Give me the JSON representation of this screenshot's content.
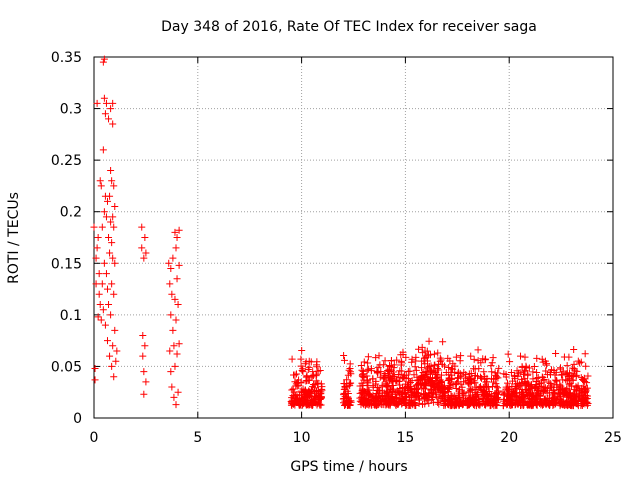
{
  "chart_data": {
    "type": "scatter",
    "title": "Day 348 of 2016, Rate Of TEC Index for receiver saga",
    "xlabel": "GPS time / hours",
    "ylabel": "ROTI / TECUs",
    "xlim": [
      0,
      25
    ],
    "ylim": [
      0,
      0.35
    ],
    "xticks": [
      0,
      5,
      10,
      15,
      20,
      25
    ],
    "xtick_labels": [
      "0",
      "5",
      "10",
      "15",
      "20",
      "25"
    ],
    "yticks": [
      0,
      0.05,
      0.1,
      0.15,
      0.2,
      0.25,
      0.3,
      0.35
    ],
    "ytick_labels": [
      "0",
      "0.05",
      "0.1",
      "0.15",
      "0.2",
      "0.25",
      "0.3",
      "0.35"
    ],
    "grid": true,
    "marker": "+",
    "color": "#ff0000",
    "series": [
      {
        "name": "ROTI",
        "points": [
          [
            0.0,
            0.185
          ],
          [
            0.05,
            0.048
          ],
          [
            0.05,
            0.037
          ],
          [
            0.1,
            0.13
          ],
          [
            0.1,
            0.155
          ],
          [
            0.15,
            0.305
          ],
          [
            0.15,
            0.165
          ],
          [
            0.2,
            0.098
          ],
          [
            0.2,
            0.175
          ],
          [
            0.25,
            0.14
          ],
          [
            0.25,
            0.12
          ],
          [
            0.3,
            0.23
          ],
          [
            0.3,
            0.11
          ],
          [
            0.35,
            0.225
          ],
          [
            0.35,
            0.095
          ],
          [
            0.4,
            0.185
          ],
          [
            0.4,
            0.13
          ],
          [
            0.45,
            0.345
          ],
          [
            0.45,
            0.26
          ],
          [
            0.45,
            0.105
          ],
          [
            0.5,
            0.348
          ],
          [
            0.5,
            0.31
          ],
          [
            0.5,
            0.2
          ],
          [
            0.5,
            0.15
          ],
          [
            0.55,
            0.295
          ],
          [
            0.55,
            0.215
          ],
          [
            0.55,
            0.09
          ],
          [
            0.6,
            0.305
          ],
          [
            0.6,
            0.195
          ],
          [
            0.6,
            0.14
          ],
          [
            0.65,
            0.21
          ],
          [
            0.65,
            0.125
          ],
          [
            0.65,
            0.075
          ],
          [
            0.7,
            0.29
          ],
          [
            0.7,
            0.175
          ],
          [
            0.7,
            0.11
          ],
          [
            0.75,
            0.215
          ],
          [
            0.75,
            0.16
          ],
          [
            0.75,
            0.06
          ],
          [
            0.8,
            0.3
          ],
          [
            0.8,
            0.24
          ],
          [
            0.8,
            0.19
          ],
          [
            0.8,
            0.1
          ],
          [
            0.85,
            0.23
          ],
          [
            0.85,
            0.17
          ],
          [
            0.85,
            0.13
          ],
          [
            0.85,
            0.05
          ],
          [
            0.9,
            0.305
          ],
          [
            0.9,
            0.285
          ],
          [
            0.9,
            0.195
          ],
          [
            0.9,
            0.155
          ],
          [
            0.9,
            0.07
          ],
          [
            0.95,
            0.225
          ],
          [
            0.95,
            0.185
          ],
          [
            0.95,
            0.12
          ],
          [
            0.95,
            0.04
          ],
          [
            1.0,
            0.205
          ],
          [
            1.0,
            0.15
          ],
          [
            1.0,
            0.085
          ],
          [
            1.05,
            0.055
          ],
          [
            1.1,
            0.065
          ],
          [
            2.3,
            0.185
          ],
          [
            2.3,
            0.165
          ],
          [
            2.35,
            0.08
          ],
          [
            2.35,
            0.06
          ],
          [
            2.4,
            0.155
          ],
          [
            2.4,
            0.045
          ],
          [
            2.4,
            0.023
          ],
          [
            2.45,
            0.175
          ],
          [
            2.45,
            0.07
          ],
          [
            2.5,
            0.16
          ],
          [
            2.5,
            0.035
          ],
          [
            3.6,
            0.15
          ],
          [
            3.65,
            0.13
          ],
          [
            3.65,
            0.065
          ],
          [
            3.7,
            0.145
          ],
          [
            3.7,
            0.1
          ],
          [
            3.7,
            0.045
          ],
          [
            3.75,
            0.12
          ],
          [
            3.75,
            0.03
          ],
          [
            3.8,
            0.155
          ],
          [
            3.8,
            0.085
          ],
          [
            3.85,
            0.07
          ],
          [
            3.85,
            0.02
          ],
          [
            3.9,
            0.18
          ],
          [
            3.9,
            0.115
          ],
          [
            3.9,
            0.05
          ],
          [
            3.95,
            0.165
          ],
          [
            3.95,
            0.095
          ],
          [
            3.95,
            0.013
          ],
          [
            4.0,
            0.175
          ],
          [
            4.0,
            0.135
          ],
          [
            4.0,
            0.062
          ],
          [
            4.05,
            0.11
          ],
          [
            4.05,
            0.025
          ],
          [
            4.1,
            0.182
          ],
          [
            4.1,
            0.148
          ],
          [
            4.1,
            0.072
          ]
        ]
      }
    ]
  }
}
